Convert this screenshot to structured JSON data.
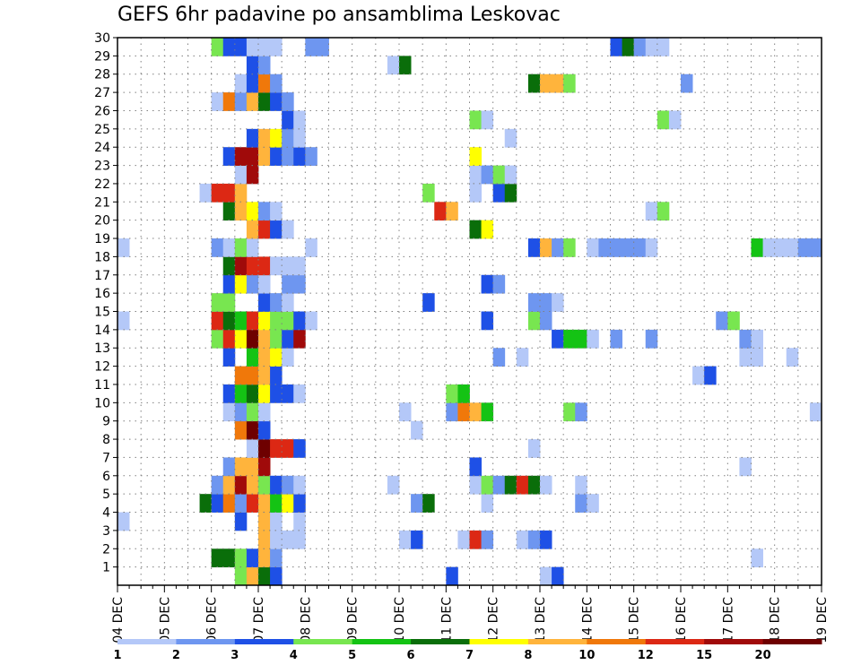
{
  "chart_data": {
    "type": "heatmap",
    "title": "GEFS 6hr padavine po ansamblima Leskovac",
    "x_tick_labels": [
      "04 DEC",
      "05 DEC",
      "06 DEC",
      "07 DEC",
      "08 DEC",
      "09 DEC",
      "10 DEC",
      "11 DEC",
      "12 DEC",
      "13 DEC",
      "14 DEC",
      "15 DEC",
      "16 DEC",
      "17 DEC",
      "18 DEC",
      "19 DEC"
    ],
    "y_tick_labels": [
      "1",
      "2",
      "3",
      "4",
      "5",
      "6",
      "7",
      "8",
      "9",
      "10",
      "11",
      "12",
      "13",
      "14",
      "15",
      "16",
      "17",
      "18",
      "19",
      "20",
      "21",
      "22",
      "23",
      "24",
      "25",
      "26",
      "27",
      "28",
      "29",
      "30"
    ],
    "xlim": [
      0,
      60
    ],
    "ylim": [
      0,
      30
    ],
    "grid": true,
    "legend": {
      "position": "bottom",
      "boundaries": [
        "1",
        "2",
        "3",
        "4",
        "5",
        "6",
        "7",
        "8",
        "10",
        "12",
        "15",
        "20"
      ],
      "colors": [
        "#b4c8f8",
        "#6e96f0",
        "#1e50e6",
        "#78e650",
        "#14c314",
        "#0a6e0a",
        "#ffff00",
        "#ffb43c",
        "#f0780a",
        "#dc2814",
        "#a00a0a",
        "#6e0000"
      ]
    },
    "category_colors": {
      "L": "#b4c8f8",
      "M": "#6e96f0",
      "B": "#1e50e6",
      "g": "#78e650",
      "G": "#14c314",
      "D": "#0a6e0a",
      "Y": "#ffff00",
      "O": "#ffb43c",
      "o": "#f0780a",
      "R": "#dc2814",
      "r": "#a00a0a",
      "K": "#6e0000"
    },
    "cells": {
      "30": [
        [
          8,
          "g"
        ],
        [
          9,
          "B"
        ],
        [
          10,
          "B"
        ],
        [
          11,
          "L"
        ],
        [
          12,
          "L"
        ],
        [
          13,
          "L"
        ],
        [
          16,
          "M"
        ],
        [
          17,
          "M"
        ],
        [
          42,
          "B"
        ],
        [
          43,
          "D"
        ],
        [
          44,
          "M"
        ],
        [
          45,
          "L"
        ],
        [
          46,
          "L"
        ]
      ],
      "29": [
        [
          11,
          "B"
        ],
        [
          12,
          "M"
        ],
        [
          23,
          "L"
        ],
        [
          24,
          "D"
        ]
      ],
      "28": [
        [
          10,
          "L"
        ],
        [
          11,
          "B"
        ],
        [
          12,
          "o"
        ],
        [
          13,
          "M"
        ],
        [
          35,
          "D"
        ],
        [
          36,
          "O"
        ],
        [
          37,
          "O"
        ],
        [
          38,
          "g"
        ],
        [
          48,
          "M"
        ]
      ],
      "27": [
        [
          8,
          "L"
        ],
        [
          9,
          "o"
        ],
        [
          10,
          "M"
        ],
        [
          11,
          "O"
        ],
        [
          12,
          "D"
        ],
        [
          13,
          "B"
        ],
        [
          14,
          "M"
        ]
      ],
      "26": [
        [
          14,
          "B"
        ],
        [
          15,
          "L"
        ],
        [
          30,
          "g"
        ],
        [
          31,
          "L"
        ],
        [
          46,
          "g"
        ],
        [
          47,
          "L"
        ]
      ],
      "25": [
        [
          11,
          "B"
        ],
        [
          12,
          "O"
        ],
        [
          13,
          "Y"
        ],
        [
          14,
          "M"
        ],
        [
          15,
          "L"
        ],
        [
          33,
          "L"
        ]
      ],
      "24": [
        [
          9,
          "B"
        ],
        [
          10,
          "r"
        ],
        [
          11,
          "r"
        ],
        [
          12,
          "O"
        ],
        [
          13,
          "B"
        ],
        [
          14,
          "M"
        ],
        [
          15,
          "B"
        ],
        [
          16,
          "M"
        ],
        [
          30,
          "Y"
        ]
      ],
      "23": [
        [
          10,
          "L"
        ],
        [
          11,
          "r"
        ],
        [
          30,
          "L"
        ],
        [
          31,
          "M"
        ],
        [
          32,
          "g"
        ],
        [
          33,
          "L"
        ]
      ],
      "22": [
        [
          7,
          "L"
        ],
        [
          8,
          "R"
        ],
        [
          9,
          "R"
        ],
        [
          10,
          "O"
        ],
        [
          26,
          "g"
        ],
        [
          30,
          "L"
        ],
        [
          32,
          "B"
        ],
        [
          33,
          "D"
        ]
      ],
      "21": [
        [
          9,
          "D"
        ],
        [
          10,
          "O"
        ],
        [
          11,
          "Y"
        ],
        [
          12,
          "M"
        ],
        [
          13,
          "L"
        ],
        [
          27,
          "R"
        ],
        [
          28,
          "O"
        ],
        [
          45,
          "L"
        ],
        [
          46,
          "g"
        ]
      ],
      "20": [
        [
          11,
          "O"
        ],
        [
          12,
          "R"
        ],
        [
          13,
          "B"
        ],
        [
          14,
          "L"
        ],
        [
          30,
          "D"
        ],
        [
          31,
          "Y"
        ]
      ],
      "19": [
        [
          0,
          "L"
        ],
        [
          8,
          "M"
        ],
        [
          9,
          "L"
        ],
        [
          10,
          "g"
        ],
        [
          11,
          "L"
        ],
        [
          16,
          "L"
        ],
        [
          35,
          "B"
        ],
        [
          36,
          "O"
        ],
        [
          37,
          "M"
        ],
        [
          38,
          "g"
        ],
        [
          40,
          "L"
        ],
        [
          41,
          "M"
        ],
        [
          42,
          "M"
        ],
        [
          43,
          "M"
        ],
        [
          44,
          "M"
        ],
        [
          45,
          "L"
        ],
        [
          54,
          "G"
        ],
        [
          55,
          "L"
        ],
        [
          56,
          "L"
        ],
        [
          57,
          "L"
        ],
        [
          58,
          "M"
        ],
        [
          59,
          "M"
        ]
      ],
      "18": [
        [
          9,
          "D"
        ],
        [
          10,
          "r"
        ],
        [
          11,
          "R"
        ],
        [
          12,
          "R"
        ],
        [
          13,
          "L"
        ],
        [
          14,
          "L"
        ],
        [
          15,
          "L"
        ]
      ],
      "17": [
        [
          9,
          "B"
        ],
        [
          10,
          "Y"
        ],
        [
          11,
          "M"
        ],
        [
          12,
          "L"
        ],
        [
          14,
          "M"
        ],
        [
          15,
          "M"
        ],
        [
          31,
          "B"
        ],
        [
          32,
          "M"
        ]
      ],
      "16": [
        [
          8,
          "g"
        ],
        [
          9,
          "g"
        ],
        [
          12,
          "B"
        ],
        [
          13,
          "M"
        ],
        [
          14,
          "L"
        ],
        [
          26,
          "B"
        ],
        [
          35,
          "M"
        ],
        [
          36,
          "M"
        ],
        [
          37,
          "L"
        ]
      ],
      "15": [
        [
          0,
          "L"
        ],
        [
          8,
          "R"
        ],
        [
          9,
          "D"
        ],
        [
          10,
          "G"
        ],
        [
          11,
          "R"
        ],
        [
          12,
          "Y"
        ],
        [
          13,
          "g"
        ],
        [
          14,
          "g"
        ],
        [
          15,
          "B"
        ],
        [
          16,
          "L"
        ],
        [
          31,
          "B"
        ],
        [
          35,
          "g"
        ],
        [
          36,
          "M"
        ],
        [
          51,
          "M"
        ],
        [
          52,
          "g"
        ]
      ],
      "14": [
        [
          8,
          "g"
        ],
        [
          9,
          "R"
        ],
        [
          10,
          "Y"
        ],
        [
          11,
          "K"
        ],
        [
          12,
          "O"
        ],
        [
          13,
          "g"
        ],
        [
          14,
          "B"
        ],
        [
          15,
          "r"
        ],
        [
          37,
          "B"
        ],
        [
          38,
          "G"
        ],
        [
          39,
          "G"
        ],
        [
          40,
          "L"
        ],
        [
          42,
          "M"
        ],
        [
          45,
          "M"
        ],
        [
          53,
          "M"
        ],
        [
          54,
          "L"
        ]
      ],
      "13": [
        [
          9,
          "B"
        ],
        [
          11,
          "G"
        ],
        [
          12,
          "O"
        ],
        [
          13,
          "Y"
        ],
        [
          14,
          "L"
        ],
        [
          32,
          "M"
        ],
        [
          34,
          "L"
        ],
        [
          53,
          "L"
        ],
        [
          54,
          "L"
        ],
        [
          57,
          "L"
        ]
      ],
      "12": [
        [
          10,
          "o"
        ],
        [
          11,
          "o"
        ],
        [
          12,
          "O"
        ],
        [
          13,
          "B"
        ],
        [
          49,
          "L"
        ],
        [
          50,
          "B"
        ]
      ],
      "11": [
        [
          9,
          "B"
        ],
        [
          10,
          "G"
        ],
        [
          11,
          "D"
        ],
        [
          12,
          "Y"
        ],
        [
          13,
          "B"
        ],
        [
          14,
          "B"
        ],
        [
          15,
          "L"
        ],
        [
          28,
          "g"
        ],
        [
          29,
          "G"
        ]
      ],
      "10": [
        [
          9,
          "L"
        ],
        [
          10,
          "M"
        ],
        [
          11,
          "g"
        ],
        [
          12,
          "L"
        ],
        [
          24,
          "L"
        ],
        [
          28,
          "M"
        ],
        [
          29,
          "o"
        ],
        [
          30,
          "O"
        ],
        [
          31,
          "G"
        ],
        [
          38,
          "g"
        ],
        [
          39,
          "M"
        ],
        [
          59,
          "L"
        ]
      ],
      "9": [
        [
          10,
          "o"
        ],
        [
          11,
          "K"
        ],
        [
          12,
          "B"
        ],
        [
          25,
          "L"
        ]
      ],
      "8": [
        [
          11,
          "L"
        ],
        [
          12,
          "K"
        ],
        [
          13,
          "R"
        ],
        [
          14,
          "R"
        ],
        [
          15,
          "B"
        ],
        [
          35,
          "L"
        ]
      ],
      "7": [
        [
          9,
          "M"
        ],
        [
          10,
          "O"
        ],
        [
          11,
          "O"
        ],
        [
          12,
          "r"
        ],
        [
          30,
          "B"
        ],
        [
          53,
          "L"
        ]
      ],
      "6": [
        [
          8,
          "M"
        ],
        [
          9,
          "O"
        ],
        [
          10,
          "r"
        ],
        [
          11,
          "O"
        ],
        [
          12,
          "g"
        ],
        [
          13,
          "B"
        ],
        [
          14,
          "M"
        ],
        [
          15,
          "L"
        ],
        [
          23,
          "L"
        ],
        [
          30,
          "L"
        ],
        [
          31,
          "g"
        ],
        [
          32,
          "M"
        ],
        [
          33,
          "D"
        ],
        [
          34,
          "R"
        ],
        [
          35,
          "D"
        ],
        [
          36,
          "L"
        ],
        [
          39,
          "L"
        ]
      ],
      "5": [
        [
          7,
          "D"
        ],
        [
          8,
          "B"
        ],
        [
          9,
          "o"
        ],
        [
          10,
          "M"
        ],
        [
          11,
          "R"
        ],
        [
          12,
          "O"
        ],
        [
          13,
          "G"
        ],
        [
          14,
          "Y"
        ],
        [
          15,
          "B"
        ],
        [
          25,
          "M"
        ],
        [
          26,
          "D"
        ],
        [
          31,
          "L"
        ],
        [
          39,
          "M"
        ],
        [
          40,
          "L"
        ]
      ],
      "4": [
        [
          0,
          "L"
        ],
        [
          10,
          "B"
        ],
        [
          12,
          "O"
        ],
        [
          13,
          "L"
        ],
        [
          15,
          "L"
        ]
      ],
      "3": [
        [
          12,
          "O"
        ],
        [
          13,
          "L"
        ],
        [
          14,
          "L"
        ],
        [
          15,
          "L"
        ],
        [
          24,
          "L"
        ],
        [
          25,
          "B"
        ],
        [
          29,
          "L"
        ],
        [
          30,
          "R"
        ],
        [
          31,
          "M"
        ],
        [
          34,
          "L"
        ],
        [
          35,
          "M"
        ],
        [
          36,
          "B"
        ]
      ],
      "2": [
        [
          8,
          "D"
        ],
        [
          9,
          "D"
        ],
        [
          10,
          "g"
        ],
        [
          11,
          "B"
        ],
        [
          12,
          "O"
        ],
        [
          13,
          "M"
        ],
        [
          54,
          "L"
        ]
      ],
      "1": [
        [
          10,
          "g"
        ],
        [
          11,
          "O"
        ],
        [
          12,
          "D"
        ],
        [
          13,
          "B"
        ],
        [
          28,
          "B"
        ],
        [
          36,
          "L"
        ],
        [
          37,
          "B"
        ]
      ]
    }
  }
}
